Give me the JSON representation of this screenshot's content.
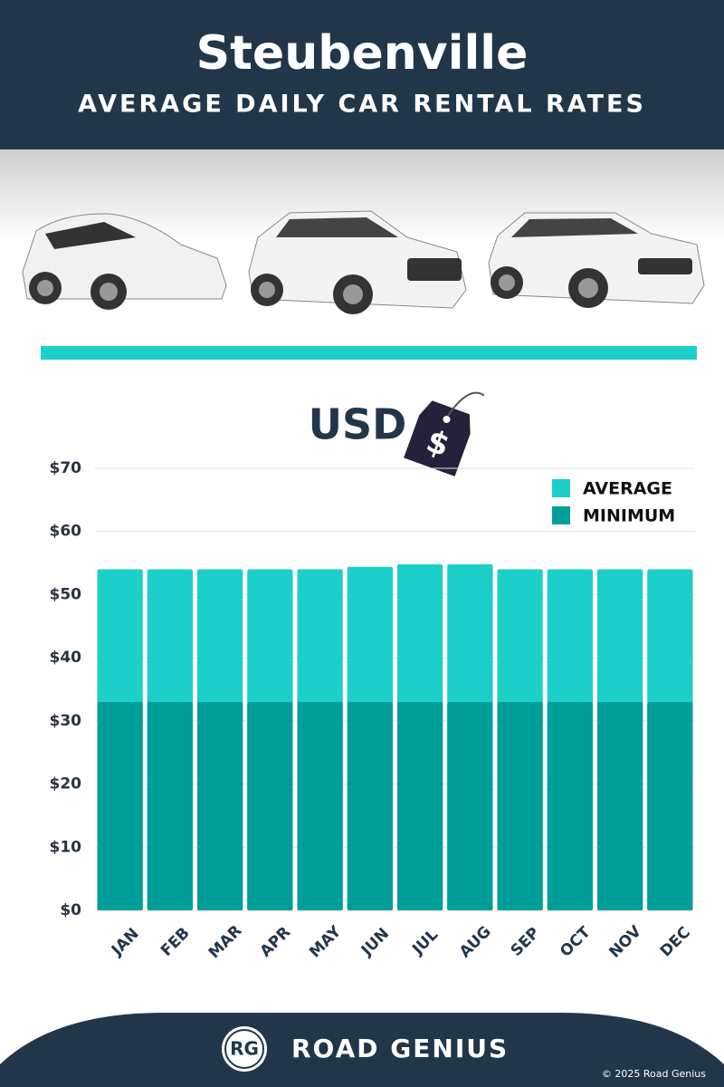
{
  "chart_data": {
    "type": "bar",
    "title": "Steubenville",
    "subtitle": "AVERAGE DAILY CAR RENTAL RATES",
    "unit_label": "USD",
    "categories": [
      "JAN",
      "FEB",
      "MAR",
      "APR",
      "MAY",
      "JUN",
      "JUL",
      "AUG",
      "SEP",
      "OCT",
      "NOV",
      "DEC"
    ],
    "series": [
      {
        "name": "AVERAGE",
        "color": "#1ccfc9",
        "values": [
          54,
          54,
          54,
          54,
          54,
          54.4,
          54.8,
          54.8,
          54,
          54,
          54,
          54
        ]
      },
      {
        "name": "MINIMUM",
        "color": "#009e99",
        "values": [
          33,
          33,
          33,
          33,
          33,
          33,
          33,
          33,
          33,
          33,
          33,
          33
        ]
      }
    ],
    "ylim": [
      0,
      70
    ],
    "yticks": [
      {
        "value": 0,
        "label": "$0"
      },
      {
        "value": 10,
        "label": "$10"
      },
      {
        "value": 20,
        "label": "$20"
      },
      {
        "value": 30,
        "label": "$30"
      },
      {
        "value": 40,
        "label": "$40"
      },
      {
        "value": 50,
        "label": "$50"
      },
      {
        "value": 60,
        "label": "$60"
      },
      {
        "value": 70,
        "label": "$70"
      }
    ],
    "grid": true,
    "legend": "upper right",
    "brand": {
      "logo": "RG",
      "name": "ROAD GENIUS",
      "copyright": "© 2025 Road Genius"
    }
  }
}
